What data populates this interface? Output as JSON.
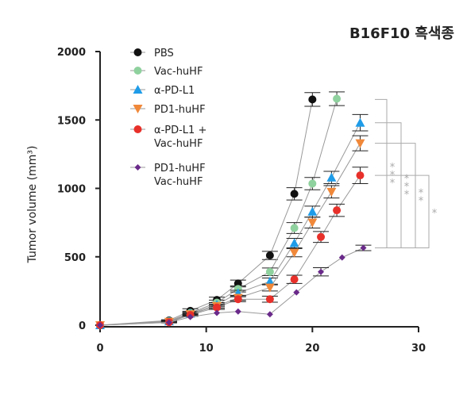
{
  "chart_data": {
    "type": "line",
    "title": "B16F10 흑색종",
    "xlabel": "",
    "ylabel": "Tumor volume (mm³)",
    "xlim": [
      0,
      30
    ],
    "ylim": [
      0,
      2000
    ],
    "xticks": [
      0,
      10,
      20,
      30
    ],
    "yticks": [
      0,
      500,
      1000,
      1500,
      2000
    ],
    "legend_position": "top-left",
    "series": [
      {
        "name": "PBS",
        "color": "#111111",
        "marker": "circle",
        "x": [
          0,
          6.5,
          8.5,
          11,
          13,
          16,
          18.3,
          20
        ],
        "y": [
          0,
          35,
          105,
          185,
          305,
          510,
          960,
          1650
        ],
        "err": [
          0,
          5,
          15,
          20,
          25,
          30,
          45,
          50
        ]
      },
      {
        "name": "Vac-huHF",
        "color": "#8fd19e",
        "marker": "circle",
        "x": [
          0,
          6.5,
          8.5,
          11,
          13,
          16,
          18.3,
          20,
          22.3
        ],
        "y": [
          0,
          30,
          90,
          165,
          265,
          390,
          710,
          1035,
          1655
        ],
        "err": [
          0,
          5,
          12,
          18,
          22,
          28,
          40,
          45,
          50
        ]
      },
      {
        "name": "α-PD-L1",
        "color": "#1f9ce8",
        "marker": "triangle-up",
        "x": [
          0,
          6.5,
          8.5,
          11,
          13,
          16,
          18.3,
          20,
          21.8,
          24.5
        ],
        "y": [
          0,
          28,
          85,
          150,
          235,
          320,
          600,
          830,
          1080,
          1480
        ],
        "err": [
          0,
          5,
          12,
          15,
          20,
          25,
          35,
          40,
          45,
          60
        ]
      },
      {
        "name": "PD1-huHF",
        "color": "#f0883a",
        "marker": "triangle-down",
        "x": [
          0,
          6.5,
          8.5,
          11,
          13,
          16,
          18.3,
          20,
          21.8,
          24.5
        ],
        "y": [
          0,
          25,
          80,
          140,
          200,
          275,
          530,
          750,
          975,
          1330
        ],
        "err": [
          0,
          5,
          10,
          15,
          18,
          25,
          30,
          40,
          45,
          55
        ]
      },
      {
        "name": "α-PD-L1 + Vac-huHF",
        "color": "#e8302a",
        "marker": "circle",
        "x": [
          0,
          6.5,
          8.5,
          11,
          13,
          16,
          18.3,
          20.8,
          22.3,
          24.5
        ],
        "y": [
          0,
          22,
          75,
          130,
          190,
          190,
          335,
          645,
          840,
          1095
        ],
        "err": [
          0,
          5,
          10,
          15,
          18,
          22,
          30,
          40,
          45,
          60
        ]
      },
      {
        "name": "PD1-huHF Vac-huHF",
        "color": "#6a2a8a",
        "marker": "diamond",
        "x": [
          0,
          6.5,
          8.5,
          11,
          13,
          16,
          18.5,
          20.8,
          22.8,
          24.8
        ],
        "y": [
          0,
          20,
          60,
          90,
          100,
          80,
          240,
          390,
          495,
          565
        ],
        "err": [
          0,
          0,
          0,
          0,
          0,
          0,
          0,
          30,
          0,
          20
        ]
      }
    ],
    "annotations": [
      {
        "text": "***",
        "from_series": "PBS",
        "to_series": "PD1-huHF Vac-huHF"
      },
      {
        "text": "***",
        "from_series": "α-PD-L1",
        "to_series": "PD1-huHF Vac-huHF"
      },
      {
        "text": "**",
        "from_series": "PD1-huHF",
        "to_series": "PD1-huHF Vac-huHF"
      },
      {
        "text": "*",
        "from_series": "α-PD-L1 + Vac-huHF",
        "to_series": "PD1-huHF Vac-huHF"
      }
    ]
  }
}
